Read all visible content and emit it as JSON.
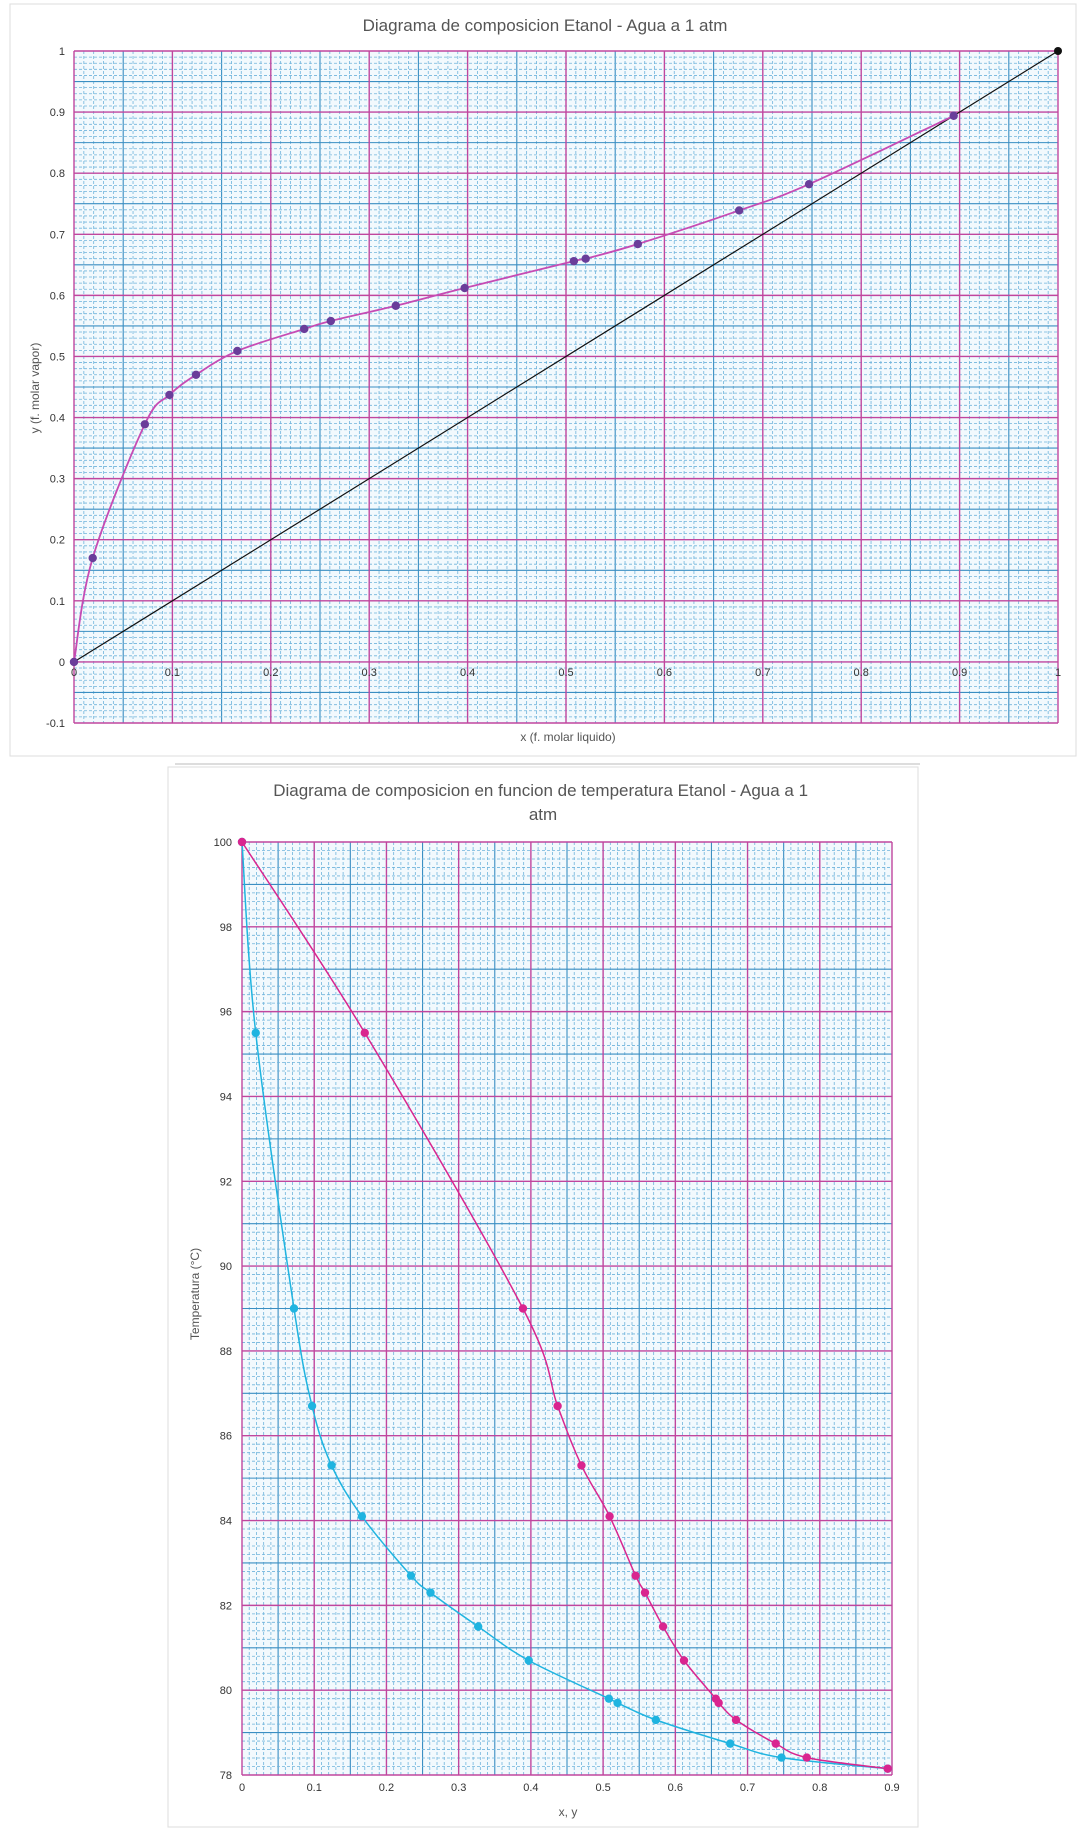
{
  "chart_data": [
    {
      "type": "scatter",
      "title": "Diagrama de composicion Etanol - Agua a 1 atm",
      "xlabel": "x (f. molar liquido)",
      "ylabel": "y (f. molar vapor)",
      "xlim": [
        0,
        1
      ],
      "ylim": [
        -0.1,
        1
      ],
      "x_ticks": [
        "0",
        "0.1",
        "0.2",
        "0.3",
        "0.4",
        "0.5",
        "0.6",
        "0.7",
        "0.8",
        "0.9",
        "1"
      ],
      "y_ticks": [
        "-0.1",
        "0",
        "0.1",
        "0.2",
        "0.3",
        "0.4",
        "0.5",
        "0.6",
        "0.7",
        "0.8",
        "0.9",
        "1"
      ],
      "grid": "graph-paper",
      "series": [
        {
          "color": "#6a3d9a",
          "line_color": "#c64bb4",
          "x": [
            0,
            0.019,
            0.072,
            0.097,
            0.124,
            0.166,
            0.234,
            0.261,
            0.327,
            0.397,
            0.508,
            0.52,
            0.573,
            0.676,
            0.747,
            0.894
          ],
          "y": [
            0,
            0.17,
            0.389,
            0.437,
            0.47,
            0.509,
            0.545,
            0.558,
            0.583,
            0.612,
            0.656,
            0.66,
            0.684,
            0.739,
            0.782,
            0.894
          ]
        },
        {
          "color": "#111111",
          "line_color": "#111111",
          "x": [
            0,
            1
          ],
          "y": [
            0,
            1
          ]
        }
      ]
    },
    {
      "type": "line",
      "title": "Diagrama de composicion en funcion de temperatura Etanol - Agua a 1 atm",
      "xlabel": "x, y",
      "ylabel": "Temperatura (°C)",
      "xlim": [
        0,
        0.9
      ],
      "ylim": [
        78,
        100
      ],
      "x_ticks": [
        "0",
        "0.1",
        "0.2",
        "0.3",
        "0.4",
        "0.5",
        "0.6",
        "0.7",
        "0.8",
        "0.9"
      ],
      "y_ticks": [
        "78",
        "80",
        "82",
        "84",
        "86",
        "88",
        "90",
        "92",
        "94",
        "96",
        "98",
        "100"
      ],
      "grid": "graph-paper",
      "series": [
        {
          "color": "#1fb4e0",
          "x": [
            0,
            0.019,
            0.072,
            0.097,
            0.124,
            0.166,
            0.234,
            0.261,
            0.327,
            0.397,
            0.508,
            0.52,
            0.573,
            0.676,
            0.747,
            0.894
          ],
          "y": [
            100,
            95.5,
            89.0,
            86.7,
            85.3,
            84.1,
            82.7,
            82.3,
            81.5,
            80.7,
            79.8,
            79.7,
            79.3,
            78.74,
            78.41,
            78.15
          ]
        },
        {
          "color": "#d9258f",
          "x": [
            0,
            0.17,
            0.389,
            0.437,
            0.47,
            0.509,
            0.545,
            0.558,
            0.583,
            0.612,
            0.656,
            0.66,
            0.684,
            0.739,
            0.782,
            0.894
          ],
          "y": [
            100,
            95.5,
            89.0,
            86.7,
            85.3,
            84.1,
            82.7,
            82.3,
            81.5,
            80.7,
            79.8,
            79.7,
            79.3,
            78.74,
            78.41,
            78.15
          ]
        }
      ]
    }
  ]
}
